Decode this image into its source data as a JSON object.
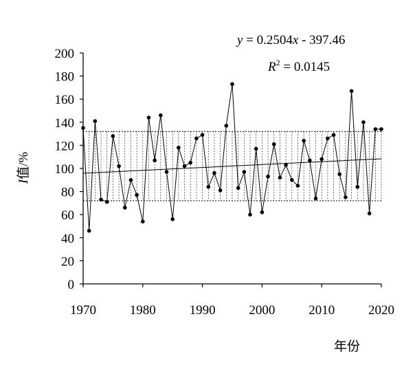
{
  "chart_data": {
    "type": "line",
    "ylabel_italic": "I",
    "ylabel": "值/%",
    "xlabel": "年份",
    "xlim": [
      1970,
      2020
    ],
    "ylim": [
      0,
      200
    ],
    "x_ticks": [
      "1970",
      "1980",
      "1990",
      "2000",
      "2010",
      "2020"
    ],
    "y_ticks": [
      "0",
      "20",
      "40",
      "60",
      "80",
      "100",
      "120",
      "140",
      "160",
      "180",
      "200"
    ],
    "equation": {
      "y_var": "y",
      "rhs_prefix": " = 0.2504",
      "x_var": "x",
      "rhs_suffix": " - 397.46",
      "r2_base": "R",
      "r2_exp": "2",
      "r2_value": " = 0.0145"
    },
    "trendline": {
      "slope": 0.2504,
      "intercept": -397.46
    },
    "band": {
      "lower": 72,
      "upper": 132
    },
    "series": [
      {
        "x": [
          1970,
          1971,
          1972,
          1973,
          1974,
          1975,
          1976,
          1977,
          1978,
          1979,
          1980,
          1981,
          1982,
          1983,
          1984,
          1985,
          1986,
          1987,
          1988,
          1989,
          1990,
          1991,
          1992,
          1993,
          1994,
          1995,
          1996,
          1997,
          1998,
          1999,
          2000,
          2001,
          2002,
          2003,
          2004,
          2005,
          2006,
          2007,
          2008,
          2009,
          2010,
          2011,
          2012,
          2013,
          2014,
          2015,
          2016,
          2017,
          2018,
          2019,
          2020
        ],
        "values": [
          135,
          46,
          141,
          73,
          71,
          128,
          102,
          66,
          90,
          77,
          54,
          144,
          107,
          146,
          97,
          56,
          118,
          102,
          105,
          126,
          129,
          84,
          96,
          81,
          137,
          173,
          83,
          97,
          60,
          117,
          62,
          93,
          121,
          92,
          103,
          90,
          85,
          124,
          107,
          74,
          108,
          126,
          129,
          95,
          75,
          167,
          84,
          140,
          61,
          134,
          134
        ]
      }
    ]
  }
}
